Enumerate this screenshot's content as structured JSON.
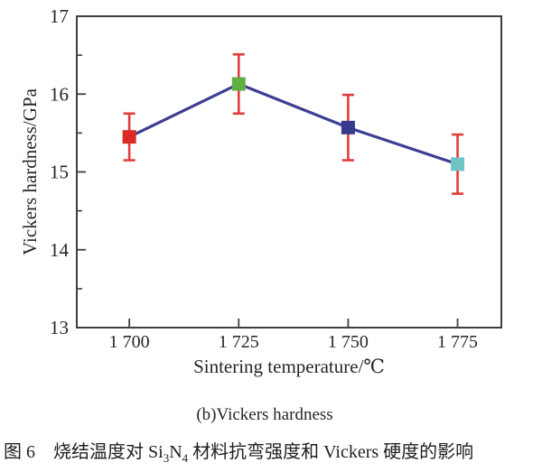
{
  "figure": {
    "subcaption": "(b)Vickers hardness",
    "caption": {
      "prefix": "图 6　烧结温度对 Si",
      "sub1": "3",
      "mid": "N",
      "sub2": "4",
      "suffix": " 材料抗弯强度和 Vickers 硬度的影响"
    }
  },
  "chart_data": {
    "type": "line",
    "title": "",
    "xlabel": "Sintering temperature/℃",
    "ylabel": "Vickers hardness/GPa",
    "xlim": [
      1688,
      1785
    ],
    "ylim": [
      13,
      17
    ],
    "x_ticks": [
      1700,
      1725,
      1750,
      1775
    ],
    "x_tick_labels": [
      "1 700",
      "1 725",
      "1 750",
      "1 775"
    ],
    "y_ticks": [
      13,
      14,
      15,
      16,
      17
    ],
    "y_minor_ticks": [
      13.5,
      14.5,
      15.5,
      16.5
    ],
    "grid": false,
    "legend": "none",
    "series": [
      {
        "name": "Vickers hardness",
        "x": [
          1700,
          1725,
          1750,
          1775
        ],
        "values": [
          15.45,
          16.13,
          15.57,
          15.1
        ],
        "errors": [
          0.3,
          0.38,
          0.42,
          0.38
        ],
        "marker": "square",
        "marker_colors": [
          "#dc2a23",
          "#5fb043",
          "#383a8e",
          "#6fc3c3"
        ]
      }
    ],
    "line_color": "#3c3f92",
    "error_color": "#e13c3c",
    "axis_color": "#3f3f3f",
    "text_color": "#262626"
  }
}
